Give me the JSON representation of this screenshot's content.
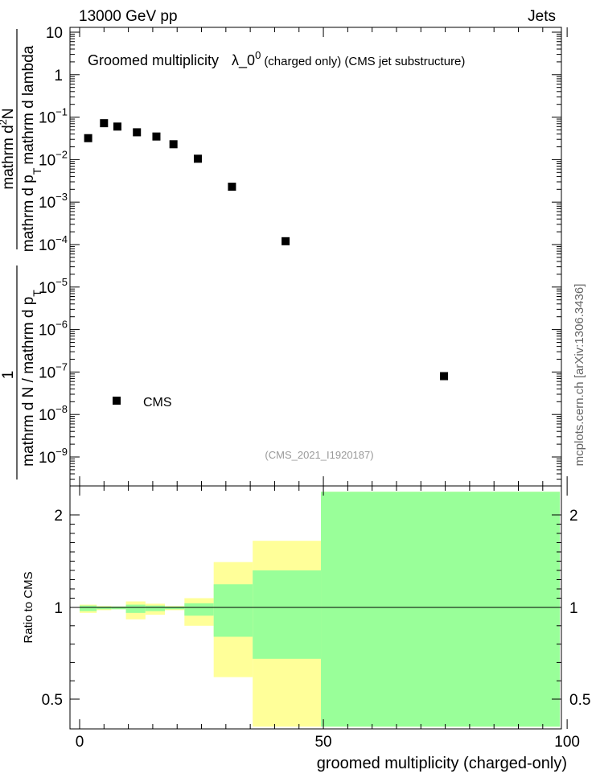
{
  "header": {
    "left": "13000 GeV pp",
    "right": "Jets"
  },
  "side_label": "mcplots.cern.ch [arXiv:1306.3436]",
  "watermark": "(CMS_2021_I1920187)",
  "colors": {
    "data_marker": "#000000",
    "band_outer": "#ffff99",
    "band_inner": "#99ff99",
    "watermark": "#999999",
    "side_label": "#666666"
  },
  "chart_data": [
    {
      "type": "scatter",
      "title_main": "Groomed multiplicity",
      "title_symbol": "λ_0",
      "title_sup": "0",
      "title_rest": "(charged only) (CMS jet substructure)",
      "ylabel_num": "1",
      "ylabel_den_text": "mathrm d N / mathrm d p",
      "ylabel_den_sub": "T",
      "ylabel_frac_num": "mathrm d",
      "ylabel_frac_num_sup": "2",
      "ylabel_frac_num_end": "N",
      "ylabel_frac_den": "mathrm d p",
      "ylabel_frac_den_sub": "T",
      "ylabel_frac_den_end": "mathrm d lambda",
      "y_scale": "log",
      "ylim": [
        3e-10,
        20
      ],
      "xlim": [
        -2,
        100
      ],
      "y_ticks": [
        {
          "v": 10,
          "base": "10",
          "exp": ""
        },
        {
          "v": 1,
          "base": "1",
          "exp": ""
        },
        {
          "v": 0.1,
          "base": "10",
          "exp": "−1"
        },
        {
          "v": 0.01,
          "base": "10",
          "exp": "−2"
        },
        {
          "v": 0.001,
          "base": "10",
          "exp": "−3"
        },
        {
          "v": 0.0001,
          "base": "10",
          "exp": "−4"
        },
        {
          "v": 1e-05,
          "base": "10",
          "exp": "−5"
        },
        {
          "v": 1e-06,
          "base": "10",
          "exp": "−6"
        },
        {
          "v": 1e-07,
          "base": "10",
          "exp": "−7"
        },
        {
          "v": 1e-08,
          "base": "10",
          "exp": "−8"
        },
        {
          "v": 1e-09,
          "base": "10",
          "exp": "−9"
        }
      ],
      "series": [
        {
          "name": "CMS",
          "x": [
            1.75,
            5,
            7.75,
            11.75,
            15.75,
            19.25,
            24.25,
            31.25,
            42.25,
            74.75
          ],
          "y": [
            0.032,
            0.072,
            0.06,
            0.044,
            0.035,
            0.023,
            0.0105,
            0.0023,
            0.00012,
            8e-08
          ]
        }
      ],
      "legend_position": "bottom-left"
    },
    {
      "type": "area",
      "ylabel": "Ratio to CMS",
      "xlabel": "groomed multiplicity (charged-only)",
      "ylim": [
        0.35,
        2.25
      ],
      "xlim": [
        -2,
        100
      ],
      "x_ticks": [
        0,
        50,
        100
      ],
      "y_ticks": [
        0.5,
        1,
        2
      ],
      "reference_line": 1,
      "bins": [
        {
          "x0": 0,
          "x1": 3.5,
          "outer": [
            0.97,
            1.03
          ],
          "inner": [
            0.98,
            1.02
          ]
        },
        {
          "x0": 3.5,
          "x1": 6.5,
          "outer": [
            0.985,
            1.015
          ],
          "inner": [
            0.99,
            1.01
          ]
        },
        {
          "x0": 6.5,
          "x1": 9.5,
          "outer": [
            0.99,
            1.01
          ],
          "inner": [
            0.99,
            1.01
          ]
        },
        {
          "x0": 9.5,
          "x1": 13.5,
          "outer": [
            0.935,
            1.065
          ],
          "inner": [
            0.97,
            1.03
          ]
        },
        {
          "x0": 13.5,
          "x1": 17.5,
          "outer": [
            0.96,
            1.04
          ],
          "inner": [
            0.98,
            1.02
          ]
        },
        {
          "x0": 17.5,
          "x1": 21.5,
          "outer": [
            0.985,
            1.015
          ],
          "inner": [
            0.99,
            1.01
          ]
        },
        {
          "x0": 21.5,
          "x1": 27.5,
          "outer": [
            0.9,
            1.1
          ],
          "inner": [
            0.955,
            1.045
          ]
        },
        {
          "x0": 27.5,
          "x1": 35.5,
          "outer": [
            0.62,
            1.49
          ],
          "inner": [
            0.84,
            1.25
          ]
        },
        {
          "x0": 35.5,
          "x1": 49.5,
          "outer": [
            0.35,
            1.72
          ],
          "inner": [
            0.72,
            1.4
          ]
        },
        {
          "x0": 49.5,
          "x1": 98.5,
          "outer": [
            0.35,
            2.25
          ],
          "inner": [
            0.35,
            2.25
          ]
        }
      ]
    }
  ]
}
